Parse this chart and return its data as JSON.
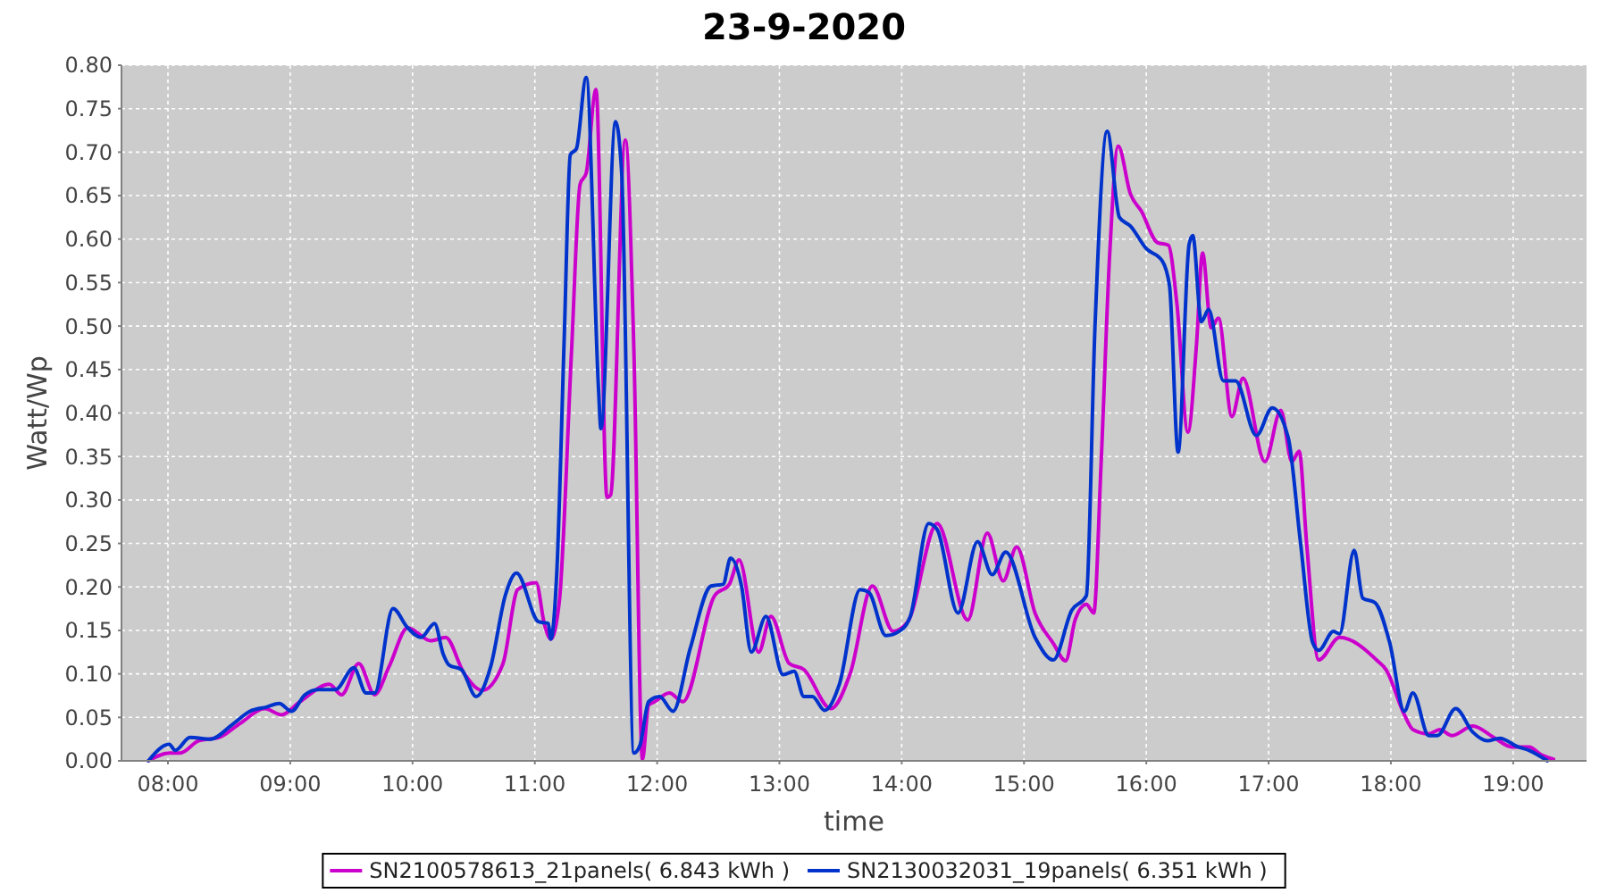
{
  "chart_data": {
    "type": "line",
    "title": "23-9-2020",
    "xlabel": "time",
    "ylabel": "Watt/Wp",
    "xlim": [
      7.62,
      19.6
    ],
    "xticks": [
      {
        "value": 8,
        "label": "08:00"
      },
      {
        "value": 9,
        "label": "09:00"
      },
      {
        "value": 10,
        "label": "10:00"
      },
      {
        "value": 11,
        "label": "11:00"
      },
      {
        "value": 12,
        "label": "12:00"
      },
      {
        "value": 13,
        "label": "13:00"
      },
      {
        "value": 14,
        "label": "14:00"
      },
      {
        "value": 15,
        "label": "15:00"
      },
      {
        "value": 16,
        "label": "16:00"
      },
      {
        "value": 17,
        "label": "17:00"
      },
      {
        "value": 18,
        "label": "18:00"
      },
      {
        "value": 19,
        "label": "19:00"
      }
    ],
    "ylim": [
      0,
      0.8
    ],
    "yticks": [
      {
        "value": 0,
        "label": "0.00"
      },
      {
        "value": 0.05,
        "label": "0.05"
      },
      {
        "value": 0.1,
        "label": "0.10"
      },
      {
        "value": 0.15,
        "label": "0.15"
      },
      {
        "value": 0.2,
        "label": "0.20"
      },
      {
        "value": 0.25,
        "label": "0.25"
      },
      {
        "value": 0.3,
        "label": "0.30"
      },
      {
        "value": 0.35,
        "label": "0.35"
      },
      {
        "value": 0.4,
        "label": "0.40"
      },
      {
        "value": 0.45,
        "label": "0.45"
      },
      {
        "value": 0.5,
        "label": "0.50"
      },
      {
        "value": 0.55,
        "label": "0.55"
      },
      {
        "value": 0.6,
        "label": "0.60"
      },
      {
        "value": 0.65,
        "label": "0.65"
      },
      {
        "value": 0.7,
        "label": "0.70"
      },
      {
        "value": 0.75,
        "label": "0.75"
      },
      {
        "value": 0.8,
        "label": "0.80"
      }
    ],
    "grid": true,
    "legend": "bottom",
    "series": [
      {
        "name": "SN2100578613_21panels( 6.843 kWh )",
        "color": "#cc00cc",
        "x": [
          7.84,
          8.01,
          8.1,
          8.25,
          8.42,
          8.59,
          8.79,
          8.93,
          9.08,
          9.32,
          9.42,
          9.56,
          9.69,
          9.81,
          9.96,
          10.15,
          10.27,
          10.42,
          10.57,
          10.74,
          10.86,
          11.01,
          11.08,
          11.13,
          11.2,
          11.3,
          11.37,
          11.42,
          11.5,
          11.59,
          11.62,
          11.74,
          11.81,
          11.88,
          11.93,
          11.98,
          12.1,
          12.21,
          12.47,
          12.59,
          12.67,
          12.83,
          12.93,
          13.08,
          13.2,
          13.42,
          13.58,
          13.76,
          13.93,
          14.05,
          14.29,
          14.54,
          14.7,
          14.83,
          14.94,
          15.09,
          15.24,
          15.34,
          15.42,
          15.51,
          15.57,
          15.63,
          15.7,
          15.77,
          15.87,
          15.96,
          16.09,
          16.18,
          16.25,
          16.34,
          16.41,
          16.46,
          16.53,
          16.59,
          16.7,
          16.79,
          16.97,
          17.1,
          17.19,
          17.25,
          17.31,
          17.41,
          17.58,
          17.89,
          17.96,
          18.11,
          18.18,
          18.31,
          18.4,
          18.5,
          18.67,
          18.84,
          18.99,
          19.13,
          19.23,
          19.33
        ],
        "values": [
          0,
          0.009,
          0.009,
          0.023,
          0.027,
          0.043,
          0.06,
          0.053,
          0.068,
          0.088,
          0.076,
          0.112,
          0.076,
          0.109,
          0.153,
          0.138,
          0.142,
          0.101,
          0.081,
          0.112,
          0.197,
          0.205,
          0.156,
          0.14,
          0.183,
          0.471,
          0.663,
          0.676,
          0.772,
          0.303,
          0.306,
          0.714,
          0.471,
          0.002,
          0.064,
          0.068,
          0.078,
          0.068,
          0.19,
          0.203,
          0.231,
          0.125,
          0.166,
          0.112,
          0.105,
          0.06,
          0.101,
          0.201,
          0.149,
          0.16,
          0.273,
          0.162,
          0.262,
          0.207,
          0.246,
          0.17,
          0.135,
          0.115,
          0.163,
          0.18,
          0.17,
          0.341,
          0.581,
          0.707,
          0.652,
          0.632,
          0.596,
          0.593,
          0.526,
          0.378,
          0.478,
          0.584,
          0.498,
          0.509,
          0.396,
          0.44,
          0.344,
          0.403,
          0.344,
          0.356,
          0.252,
          0.116,
          0.142,
          0.115,
          0.105,
          0.053,
          0.036,
          0.031,
          0.036,
          0.029,
          0.04,
          0.027,
          0.016,
          0.016,
          0.007,
          0.002
        ]
      },
      {
        "name": "SN2130032031_19panels( 6.351 kWh )",
        "color": "#0033cc",
        "x": [
          7.84,
          8.01,
          8.06,
          8.18,
          8.35,
          8.52,
          8.67,
          8.81,
          8.91,
          9.01,
          9.12,
          9.23,
          9.37,
          9.52,
          9.62,
          9.69,
          9.84,
          9.96,
          10.07,
          10.18,
          10.25,
          10.3,
          10.4,
          10.52,
          10.64,
          10.76,
          10.85,
          11.03,
          11.11,
          11.13,
          11.18,
          11.24,
          11.29,
          11.34,
          11.42,
          11.52,
          11.54,
          11.66,
          11.71,
          11.81,
          11.86,
          11.93,
          12.02,
          12.13,
          12.27,
          12.44,
          12.54,
          12.6,
          12.69,
          12.77,
          12.89,
          13.03,
          13.12,
          13.2,
          13.27,
          13.37,
          13.49,
          13.66,
          13.73,
          13.87,
          13.98,
          14.07,
          14.22,
          14.29,
          14.46,
          14.62,
          14.74,
          14.85,
          15.09,
          15.24,
          15.39,
          15.51,
          15.58,
          15.68,
          15.78,
          15.87,
          16.0,
          16.13,
          16.19,
          16.26,
          16.35,
          16.38,
          16.45,
          16.51,
          16.63,
          16.73,
          16.9,
          17.03,
          17.16,
          17.26,
          17.36,
          17.41,
          17.53,
          17.58,
          17.7,
          17.77,
          17.87,
          17.99,
          18.11,
          18.18,
          18.31,
          18.38,
          18.53,
          18.67,
          18.79,
          18.89,
          19.04,
          19.13,
          19.28
        ],
        "values": [
          0,
          0.019,
          0.012,
          0.027,
          0.025,
          0.041,
          0.057,
          0.062,
          0.066,
          0.057,
          0.076,
          0.082,
          0.082,
          0.107,
          0.078,
          0.078,
          0.175,
          0.153,
          0.142,
          0.158,
          0.123,
          0.11,
          0.105,
          0.074,
          0.109,
          0.191,
          0.216,
          0.16,
          0.158,
          0.14,
          0.218,
          0.485,
          0.697,
          0.704,
          0.786,
          0.43,
          0.382,
          0.735,
          0.676,
          0.009,
          0.018,
          0.068,
          0.074,
          0.057,
          0.129,
          0.201,
          0.203,
          0.233,
          0.201,
          0.125,
          0.166,
          0.099,
          0.103,
          0.074,
          0.074,
          0.058,
          0.088,
          0.197,
          0.194,
          0.144,
          0.149,
          0.166,
          0.273,
          0.266,
          0.17,
          0.252,
          0.214,
          0.24,
          0.142,
          0.116,
          0.173,
          0.19,
          0.498,
          0.724,
          0.625,
          0.615,
          0.589,
          0.575,
          0.546,
          0.355,
          0.594,
          0.604,
          0.505,
          0.519,
          0.437,
          0.437,
          0.374,
          0.406,
          0.372,
          0.252,
          0.136,
          0.127,
          0.149,
          0.146,
          0.242,
          0.187,
          0.182,
          0.136,
          0.057,
          0.078,
          0.029,
          0.029,
          0.06,
          0.033,
          0.023,
          0.026,
          0.016,
          0.012,
          0
        ]
      }
    ]
  }
}
